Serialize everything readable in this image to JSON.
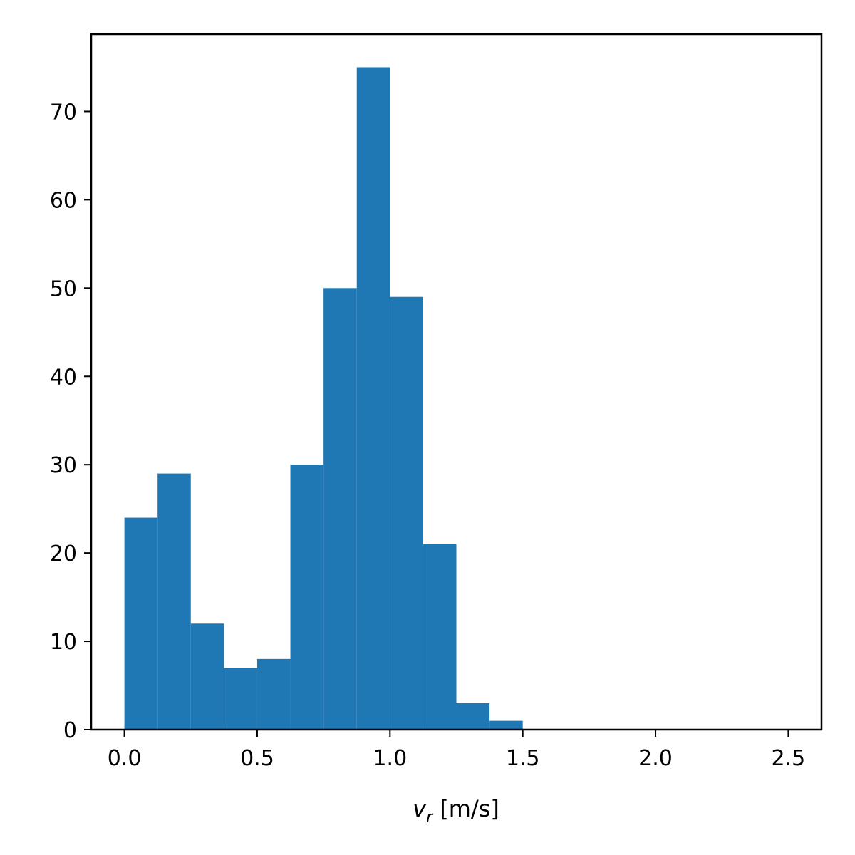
{
  "chart_data": {
    "type": "bar",
    "subtype": "histogram",
    "xlabel_main": "v",
    "xlabel_sub": "r",
    "xlabel_unit": " [m/s]",
    "ylabel": "",
    "title": "",
    "xlim": [
      -0.125,
      2.625
    ],
    "ylim": [
      0,
      78.75
    ],
    "bin_width": 0.125,
    "bins": [
      {
        "x0": 0.0,
        "x1": 0.125,
        "count": 24
      },
      {
        "x0": 0.125,
        "x1": 0.25,
        "count": 29
      },
      {
        "x0": 0.25,
        "x1": 0.375,
        "count": 12
      },
      {
        "x0": 0.375,
        "x1": 0.5,
        "count": 7
      },
      {
        "x0": 0.5,
        "x1": 0.625,
        "count": 8
      },
      {
        "x0": 0.625,
        "x1": 0.75,
        "count": 30
      },
      {
        "x0": 0.75,
        "x1": 0.875,
        "count": 50
      },
      {
        "x0": 0.875,
        "x1": 1.0,
        "count": 75
      },
      {
        "x0": 1.0,
        "x1": 1.125,
        "count": 49
      },
      {
        "x0": 1.125,
        "x1": 1.25,
        "count": 21
      },
      {
        "x0": 1.25,
        "x1": 1.375,
        "count": 3
      },
      {
        "x0": 1.375,
        "x1": 1.5,
        "count": 1
      },
      {
        "x0": 1.5,
        "x1": 1.625,
        "count": 0
      },
      {
        "x0": 1.625,
        "x1": 1.75,
        "count": 0
      },
      {
        "x0": 1.75,
        "x1": 1.875,
        "count": 0
      },
      {
        "x0": 1.875,
        "x1": 2.0,
        "count": 0
      },
      {
        "x0": 2.0,
        "x1": 2.125,
        "count": 0
      },
      {
        "x0": 2.125,
        "x1": 2.25,
        "count": 0
      },
      {
        "x0": 2.25,
        "x1": 2.375,
        "count": 0
      },
      {
        "x0": 2.375,
        "x1": 2.5,
        "count": 0
      }
    ],
    "x_ticks": [
      {
        "value": 0.0,
        "label": "0.0"
      },
      {
        "value": 0.5,
        "label": "0.5"
      },
      {
        "value": 1.0,
        "label": "1.0"
      },
      {
        "value": 1.5,
        "label": "1.5"
      },
      {
        "value": 2.0,
        "label": "2.0"
      },
      {
        "value": 2.5,
        "label": "2.5"
      }
    ],
    "y_ticks": [
      {
        "value": 0,
        "label": "0"
      },
      {
        "value": 10,
        "label": "10"
      },
      {
        "value": 20,
        "label": "20"
      },
      {
        "value": 30,
        "label": "30"
      },
      {
        "value": 40,
        "label": "40"
      },
      {
        "value": 50,
        "label": "50"
      },
      {
        "value": 60,
        "label": "60"
      },
      {
        "value": 70,
        "label": "70"
      }
    ],
    "bar_color": "#1f77b4",
    "grid": false,
    "legend": "none"
  }
}
